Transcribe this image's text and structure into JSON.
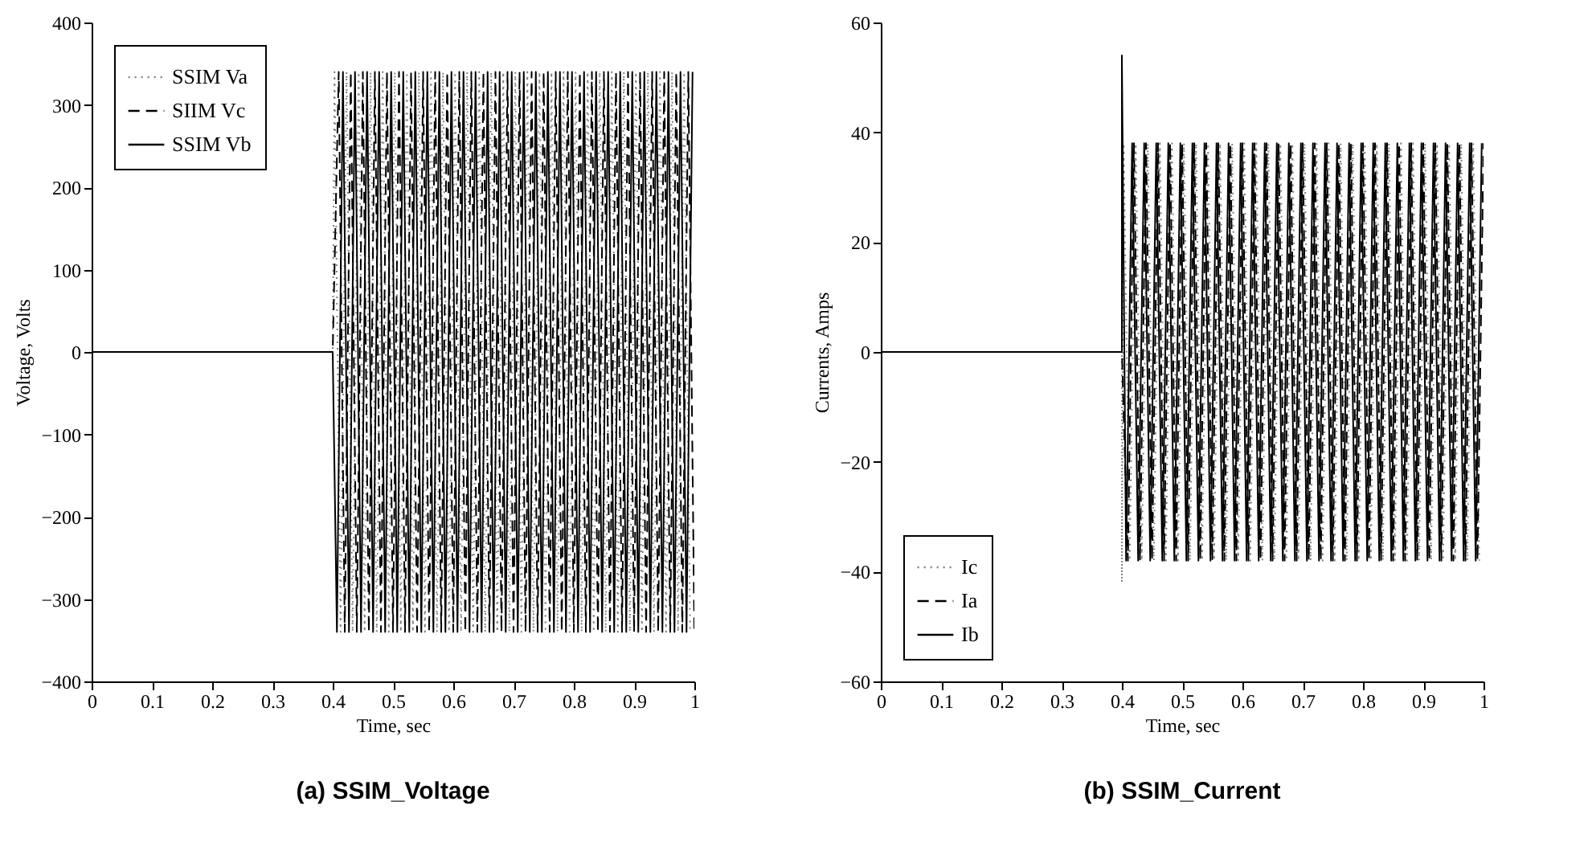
{
  "chart_data": [
    {
      "type": "line",
      "title": "(a) SSIM_Voltage",
      "xlabel": "Time, sec",
      "ylabel": "Voltage, Volts",
      "xlim": [
        0,
        1
      ],
      "xticks": [
        0,
        0.1,
        0.2,
        0.3,
        0.4,
        0.5,
        0.6,
        0.7,
        0.8,
        0.9,
        1
      ],
      "ylim": [
        -400,
        400
      ],
      "yticks": [
        -400,
        -300,
        -200,
        -100,
        0,
        100,
        200,
        300,
        400
      ],
      "grid": false,
      "legend": "top left",
      "series": [
        {
          "name": "SSIM Va",
          "color": "#808080",
          "line_style": "dotted",
          "x": [
            0,
            0.4,
            0.403,
            0.413,
            0.423,
            0.433,
            0.443,
            0.453,
            0.463,
            0.473,
            0.483,
            0.493,
            0.503,
            0.513,
            0.523,
            0.533,
            0.543,
            0.553,
            0.563,
            0.573,
            0.583,
            0.593,
            0.603,
            0.613,
            0.623,
            0.633,
            0.643,
            0.653,
            0.663,
            0.673,
            0.683,
            0.693,
            0.703,
            0.713,
            0.723,
            0.733,
            0.743,
            0.753,
            0.763,
            0.773,
            0.783,
            0.793,
            0.803,
            0.813,
            0.823,
            0.833,
            0.843,
            0.853,
            0.863,
            0.873,
            0.883,
            0.893,
            0.903,
            0.913,
            0.923,
            0.933,
            0.943,
            0.953,
            0.963,
            0.973,
            0.983,
            0.993
          ],
          "values": [
            0,
            0,
            340,
            -340,
            340,
            -340,
            340,
            -340,
            340,
            -340,
            340,
            -340,
            340,
            -340,
            340,
            -340,
            340,
            -340,
            340,
            -340,
            340,
            -340,
            340,
            -340,
            340,
            -340,
            340,
            -340,
            340,
            -340,
            340,
            -340,
            340,
            -340,
            340,
            -340,
            340,
            -340,
            340,
            -340,
            340,
            -340,
            340,
            -340,
            340,
            -340,
            340,
            -340,
            340,
            -340,
            340,
            -340,
            340,
            -340,
            340,
            -340,
            340,
            -340,
            340,
            -340,
            340,
            -340
          ]
        },
        {
          "name": "SIIM Vc",
          "color": "#000000",
          "line_style": "dashed",
          "x": [
            0,
            0.4,
            0.41,
            0.42,
            0.43,
            0.44,
            0.45,
            0.46,
            0.47,
            0.48,
            0.49,
            0.5,
            0.51,
            0.52,
            0.53,
            0.54,
            0.55,
            0.56,
            0.57,
            0.58,
            0.59,
            0.6,
            0.61,
            0.62,
            0.63,
            0.64,
            0.65,
            0.66,
            0.67,
            0.68,
            0.69,
            0.7,
            0.71,
            0.72,
            0.73,
            0.74,
            0.75,
            0.76,
            0.77,
            0.78,
            0.79,
            0.8,
            0.81,
            0.82,
            0.83,
            0.84,
            0.85,
            0.86,
            0.87,
            0.88,
            0.89,
            0.9,
            0.91,
            0.92,
            0.93,
            0.94,
            0.95,
            0.96,
            0.97,
            0.98,
            0.99,
            1
          ],
          "values": [
            0,
            0,
            340,
            -340,
            340,
            -340,
            340,
            -340,
            340,
            -340,
            340,
            -340,
            340,
            -340,
            340,
            -340,
            340,
            -340,
            340,
            -340,
            340,
            -340,
            340,
            -340,
            340,
            -340,
            340,
            -340,
            340,
            -340,
            340,
            -340,
            340,
            -340,
            340,
            -340,
            340,
            -340,
            340,
            -340,
            340,
            -340,
            340,
            -340,
            340,
            -340,
            340,
            -340,
            340,
            -340,
            340,
            -340,
            340,
            -340,
            340,
            -340,
            340,
            -340,
            340,
            -340,
            340,
            -340
          ]
        },
        {
          "name": "SSIM Vb",
          "color": "#000000",
          "line_style": "solid",
          "x": [
            0,
            0.4,
            0.407,
            0.417,
            0.427,
            0.437,
            0.447,
            0.457,
            0.467,
            0.477,
            0.487,
            0.497,
            0.507,
            0.517,
            0.527,
            0.537,
            0.547,
            0.557,
            0.567,
            0.577,
            0.587,
            0.597,
            0.607,
            0.617,
            0.627,
            0.637,
            0.647,
            0.657,
            0.667,
            0.677,
            0.687,
            0.697,
            0.707,
            0.717,
            0.727,
            0.737,
            0.747,
            0.757,
            0.767,
            0.777,
            0.787,
            0.797,
            0.807,
            0.817,
            0.827,
            0.837,
            0.847,
            0.857,
            0.867,
            0.877,
            0.887,
            0.897,
            0.907,
            0.917,
            0.927,
            0.937,
            0.947,
            0.957,
            0.967,
            0.977,
            0.987,
            0.997
          ],
          "values": [
            0,
            0,
            -340,
            340,
            -340,
            340,
            -340,
            340,
            -340,
            340,
            -340,
            340,
            -340,
            340,
            -340,
            340,
            -340,
            340,
            -340,
            340,
            -340,
            340,
            -340,
            340,
            -340,
            340,
            -340,
            340,
            -340,
            340,
            -340,
            340,
            -340,
            340,
            -340,
            340,
            -340,
            340,
            -340,
            340,
            -340,
            340,
            -340,
            340,
            -340,
            340,
            -340,
            340,
            -340,
            340,
            -340,
            340,
            -340,
            340,
            -340,
            340,
            -340,
            340,
            -340,
            340,
            -340,
            340
          ]
        }
      ]
    },
    {
      "type": "line",
      "title": "(b) SSIM_Current",
      "xlabel": "Time, sec",
      "ylabel": "Currents, Amps",
      "xlim": [
        0,
        1
      ],
      "xticks": [
        0,
        0.1,
        0.2,
        0.3,
        0.4,
        0.5,
        0.6,
        0.7,
        0.8,
        0.9,
        1
      ],
      "ylim": [
        -60,
        60
      ],
      "yticks": [
        -60,
        -40,
        -20,
        0,
        20,
        40,
        60
      ],
      "grid": false,
      "legend": "bottom left",
      "series": [
        {
          "name": "Ic",
          "color": "#808080",
          "line_style": "dotted",
          "x": [
            0,
            0.4,
            0.4,
            0.403,
            0.413,
            0.423,
            0.433,
            0.443,
            0.453,
            0.463,
            0.473,
            0.483,
            0.493,
            0.503,
            0.513,
            0.523,
            0.533,
            0.543,
            0.553,
            0.563,
            0.573,
            0.583,
            0.593,
            0.603,
            0.613,
            0.623,
            0.633,
            0.643,
            0.653,
            0.663,
            0.673,
            0.683,
            0.693,
            0.703,
            0.713,
            0.723,
            0.733,
            0.743,
            0.753,
            0.763,
            0.773,
            0.783,
            0.793,
            0.803,
            0.813,
            0.823,
            0.833,
            0.843,
            0.853,
            0.863,
            0.873,
            0.883,
            0.893,
            0.903,
            0.913,
            0.923,
            0.933,
            0.943,
            0.953,
            0.963,
            0.973,
            0.983,
            0.993
          ],
          "values": [
            0,
            0,
            -42,
            38,
            -38,
            38,
            -38,
            38,
            -38,
            38,
            -38,
            38,
            -38,
            38,
            -38,
            38,
            -38,
            38,
            -38,
            38,
            -38,
            38,
            -38,
            38,
            -38,
            38,
            -38,
            38,
            -38,
            38,
            -38,
            38,
            -38,
            38,
            -38,
            38,
            -38,
            38,
            -38,
            38,
            -38,
            38,
            -38,
            38,
            -38,
            38,
            -38,
            38,
            -38,
            38,
            -38,
            38,
            -38,
            38,
            -38,
            38,
            -38,
            38,
            -38,
            38,
            -38,
            38,
            -38
          ]
        },
        {
          "name": "Ia",
          "color": "#000000",
          "line_style": "dashed",
          "x": [
            0,
            0.4,
            0.41,
            0.42,
            0.43,
            0.44,
            0.45,
            0.46,
            0.47,
            0.48,
            0.49,
            0.5,
            0.51,
            0.52,
            0.53,
            0.54,
            0.55,
            0.56,
            0.57,
            0.58,
            0.59,
            0.6,
            0.61,
            0.62,
            0.63,
            0.64,
            0.65,
            0.66,
            0.67,
            0.68,
            0.69,
            0.7,
            0.71,
            0.72,
            0.73,
            0.74,
            0.75,
            0.76,
            0.77,
            0.78,
            0.79,
            0.8,
            0.81,
            0.82,
            0.83,
            0.84,
            0.85,
            0.86,
            0.87,
            0.88,
            0.89,
            0.9,
            0.91,
            0.92,
            0.93,
            0.94,
            0.95,
            0.96,
            0.97,
            0.98,
            0.99,
            1
          ],
          "values": [
            0,
            0,
            -38,
            38,
            -38,
            38,
            -38,
            38,
            -38,
            38,
            -38,
            38,
            -38,
            38,
            -38,
            38,
            -38,
            38,
            -38,
            38,
            -38,
            38,
            -38,
            38,
            -38,
            38,
            -38,
            38,
            -38,
            38,
            -38,
            38,
            -38,
            38,
            -38,
            38,
            -38,
            38,
            -38,
            38,
            -38,
            38,
            -38,
            38,
            -38,
            38,
            -38,
            38,
            -38,
            38,
            -38,
            38,
            -38,
            38,
            -38,
            38,
            -38,
            38,
            -38,
            38,
            -38,
            38
          ]
        },
        {
          "name": "Ib",
          "color": "#000000",
          "line_style": "solid",
          "x": [
            0,
            0.4,
            0.4,
            0.407,
            0.417,
            0.427,
            0.437,
            0.447,
            0.457,
            0.467,
            0.477,
            0.487,
            0.497,
            0.507,
            0.517,
            0.527,
            0.537,
            0.547,
            0.557,
            0.567,
            0.577,
            0.587,
            0.597,
            0.607,
            0.617,
            0.627,
            0.637,
            0.647,
            0.657,
            0.667,
            0.677,
            0.687,
            0.697,
            0.707,
            0.717,
            0.727,
            0.737,
            0.747,
            0.757,
            0.767,
            0.777,
            0.787,
            0.797,
            0.807,
            0.817,
            0.827,
            0.837,
            0.847,
            0.857,
            0.867,
            0.877,
            0.887,
            0.897,
            0.907,
            0.917,
            0.927,
            0.937,
            0.947,
            0.957,
            0.967,
            0.977,
            0.987,
            0.997
          ],
          "values": [
            0,
            0,
            54,
            -38,
            38,
            -38,
            38,
            -38,
            38,
            -38,
            38,
            -38,
            38,
            -38,
            38,
            -38,
            38,
            -38,
            38,
            -38,
            38,
            -38,
            38,
            -38,
            38,
            -38,
            38,
            -38,
            38,
            -38,
            38,
            -38,
            38,
            -38,
            38,
            -38,
            38,
            -38,
            38,
            -38,
            38,
            -38,
            38,
            -38,
            38,
            -38,
            38,
            -38,
            38,
            -38,
            38,
            -38,
            38,
            -38,
            38,
            -38,
            38,
            -38,
            38,
            -38,
            38,
            -38,
            38
          ]
        }
      ]
    }
  ]
}
